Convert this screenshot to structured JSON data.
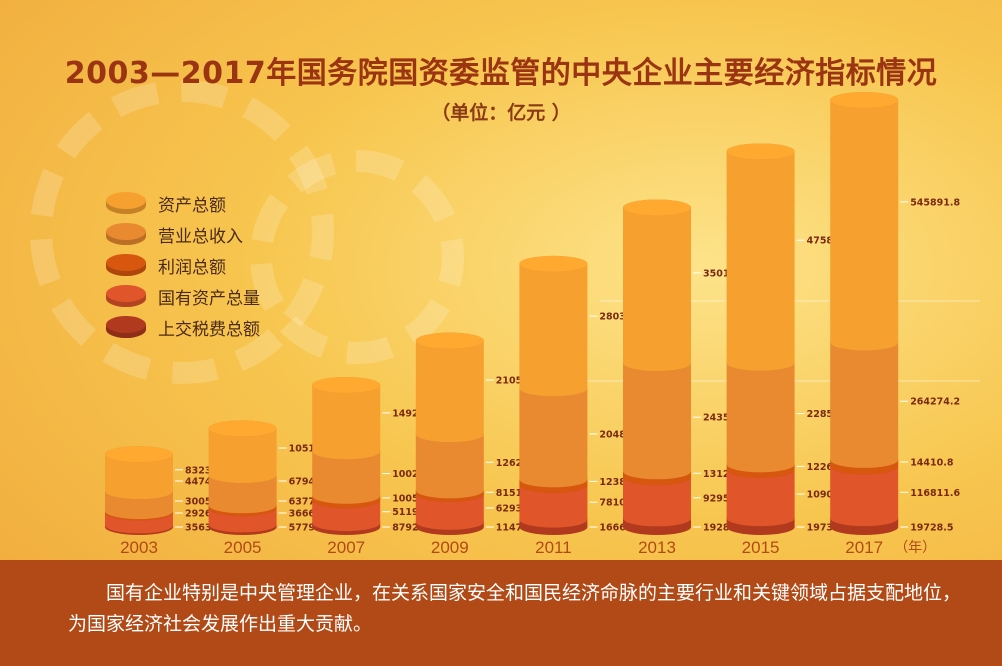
{
  "title": "2003—2017年国务院国资委监管的中央企业主要经济指标情况",
  "unit": "（单位：亿元 ）",
  "x_unit_label": "（年）",
  "caption": "国有企业特别是中央管理企业，在关系国家安全和国民经济命脉的主要行业和关键领域占据支配地位，为国家经济社会发展作出重大贡献。",
  "colors": {
    "assets": "#f6a12f",
    "revenue": "#e98a30",
    "profit": "#d8570f",
    "state_assets": "#e0552a",
    "tax": "#b13a1e",
    "axis_text": "#b34a16",
    "value_text": "#7a2a12"
  },
  "chart_data": {
    "type": "bar",
    "subtype": "stacked-cylinder",
    "title": "2003—2017年国务院国资委监管的中央企业主要经济指标情况",
    "unit": "单位：亿元",
    "categories": [
      "2003",
      "2005",
      "2007",
      "2009",
      "2011",
      "2013",
      "2015",
      "2017"
    ],
    "series": [
      {
        "name": "上交税费总额",
        "color": "#b13a1e",
        "values": [
          3563.1,
          5779.9,
          8792.1,
          11474.8,
          16666.3,
          19281.8,
          19731.5,
          19728.5
        ],
        "labels": [
          "3563.1",
          "5779.9",
          "8792.1",
          "11474.8",
          "16666.3",
          "19281.8",
          "19731.5",
          "19728.5"
        ]
      },
      {
        "name": "国有资产总量",
        "color": "#e0552a",
        "values": [
          29262.6,
          36666.7,
          51195.6,
          62931.7,
          78102.2,
          92957.5,
          109003.7,
          116811.6
        ],
        "labels": [
          "29262.6",
          "36666.7",
          "51195.6",
          "62931.7",
          "78102.2",
          "92957.5",
          "109003.7",
          "116811.6"
        ]
      },
      {
        "name": "利润总额",
        "color": "#d8570f",
        "values": [
          3005.9,
          6377.0,
          10055.7,
          8151.2,
          12388.2,
          13127.9,
          12266.4,
          14410.8
        ],
        "labels": [
          "3005.9",
          "6377.0",
          "10055.7",
          "8151.2",
          "12388.2",
          "13127.9",
          "12266.4",
          "14410.8"
        ]
      },
      {
        "name": "营业总收入",
        "color": "#e98a30",
        "values": [
          44748.1,
          67945.4,
          100281.5,
          126271.6,
          204820.6,
          243581.3,
          228521.3,
          264274.2
        ],
        "labels": [
          "44748.1",
          "67945.4",
          "100281.5",
          "126271.6",
          "204820.6",
          "243581.3",
          "228521.3",
          "264274.2"
        ]
      },
      {
        "name": "资产总额",
        "color": "#f6a12f",
        "values": [
          83232.3,
          105148.0,
          149230.7,
          210580.8,
          280355.9,
          350166.5,
          475807.8,
          545891.8
        ],
        "labels": [
          "83232.3",
          "105148.0",
          "149230.7",
          "210580.8",
          "280355.9",
          "350166.5",
          "475807.8",
          "545891.8"
        ]
      }
    ],
    "legend": [
      "资产总额",
      "营业总收入",
      "利润总额",
      "国有资产总量",
      "上交税费总额"
    ],
    "legend_position": "left",
    "grid": false
  }
}
